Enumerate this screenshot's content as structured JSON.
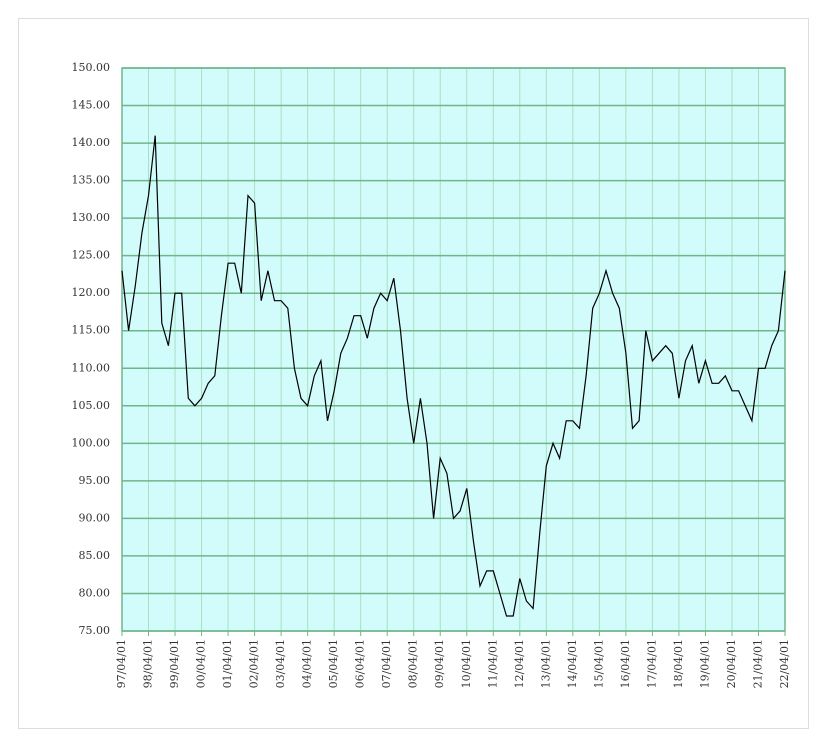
{
  "chart_data": {
    "type": "line",
    "x": [
      "97/04/01",
      "97/07/01",
      "97/10/01",
      "98/01/01",
      "98/04/01",
      "98/07/01",
      "98/10/01",
      "99/01/01",
      "99/04/01",
      "99/07/01",
      "99/10/01",
      "00/01/01",
      "00/04/01",
      "00/07/01",
      "00/10/01",
      "01/01/01",
      "01/04/01",
      "01/07/01",
      "01/10/01",
      "02/01/01",
      "02/04/01",
      "02/07/01",
      "02/10/01",
      "03/01/01",
      "03/04/01",
      "03/07/01",
      "03/10/01",
      "04/01/01",
      "04/04/01",
      "04/07/01",
      "04/10/01",
      "05/01/01",
      "05/04/01",
      "05/07/01",
      "05/10/01",
      "06/01/01",
      "06/04/01",
      "06/07/01",
      "06/10/01",
      "07/01/01",
      "07/04/01",
      "07/07/01",
      "07/10/01",
      "08/01/01",
      "08/04/01",
      "08/07/01",
      "08/10/01",
      "09/01/01",
      "09/04/01",
      "09/07/01",
      "09/10/01",
      "10/01/01",
      "10/04/01",
      "10/07/01",
      "10/10/01",
      "11/01/01",
      "11/04/01",
      "11/07/01",
      "11/10/01",
      "12/01/01",
      "12/04/01",
      "12/07/01",
      "12/10/01",
      "13/01/01",
      "13/04/01",
      "13/07/01",
      "13/10/01",
      "14/01/01",
      "14/04/01",
      "14/07/01",
      "14/10/01",
      "15/01/01",
      "15/04/01",
      "15/07/01",
      "15/10/01",
      "16/01/01",
      "16/04/01",
      "16/07/01",
      "16/10/01",
      "17/01/01",
      "17/04/01",
      "17/07/01",
      "17/10/01",
      "18/01/01",
      "18/04/01",
      "18/07/01",
      "18/10/01",
      "19/01/01",
      "19/04/01",
      "19/07/01",
      "19/10/01",
      "20/01/01",
      "20/04/01",
      "20/07/01",
      "20/10/01",
      "21/01/01",
      "21/04/01",
      "21/07/01",
      "21/10/01",
      "22/01/01",
      "22/04/01"
    ],
    "values": [
      123,
      115,
      121,
      128,
      133,
      141,
      116,
      113,
      120,
      120,
      106,
      105,
      106,
      108,
      109,
      117,
      124,
      124,
      120,
      133,
      132,
      119,
      123,
      119,
      119,
      118,
      110,
      106,
      105,
      109,
      111,
      103,
      107,
      112,
      114,
      117,
      117,
      114,
      118,
      120,
      119,
      122,
      115,
      106,
      100,
      106,
      100,
      90,
      98,
      96,
      90,
      91,
      94,
      87,
      81,
      83,
      83,
      80,
      77,
      77,
      82,
      79,
      78,
      88,
      97,
      100,
      98,
      103,
      103,
      102,
      109,
      118,
      120,
      123,
      120,
      118,
      112,
      102,
      103,
      115,
      111,
      112,
      113,
      112,
      106,
      111,
      113,
      108,
      111,
      108,
      108,
      109,
      107,
      107,
      105,
      103,
      110,
      110,
      113,
      115,
      123
    ],
    "color": "#000000",
    "xlim": [
      "97/04/01",
      "22/04/01"
    ],
    "xticks": [
      "97/04/01",
      "98/04/01",
      "99/04/01",
      "00/04/01",
      "01/04/01",
      "02/04/01",
      "03/04/01",
      "04/04/01",
      "05/04/01",
      "06/04/01",
      "07/04/01",
      "08/04/01",
      "09/04/01",
      "10/04/01",
      "11/04/01",
      "12/04/01",
      "13/04/01",
      "14/04/01",
      "15/04/01",
      "16/04/01",
      "17/04/01",
      "18/04/01",
      "19/04/01",
      "20/04/01",
      "21/04/01",
      "22/04/01"
    ],
    "ylim": [
      75,
      150
    ],
    "yticks": [
      {
        "value": 75,
        "label": "75.00"
      },
      {
        "value": 80,
        "label": "80.00"
      },
      {
        "value": 85,
        "label": "85.00"
      },
      {
        "value": 90,
        "label": "90.00"
      },
      {
        "value": 95,
        "label": "95.00"
      },
      {
        "value": 100,
        "label": "100.00"
      },
      {
        "value": 105,
        "label": "105.00"
      },
      {
        "value": 110,
        "label": "110.00"
      },
      {
        "value": 115,
        "label": "115.00"
      },
      {
        "value": 120,
        "label": "120.00"
      },
      {
        "value": 125,
        "label": "125.00"
      },
      {
        "value": 130,
        "label": "130.00"
      },
      {
        "value": 135,
        "label": "135.00"
      },
      {
        "value": 140,
        "label": "140.00"
      },
      {
        "value": 145,
        "label": "145.00"
      },
      {
        "value": 150,
        "label": "150.00"
      }
    ],
    "grid": true,
    "background": "#d2fcfc",
    "grid_color": "#6fb58a"
  }
}
